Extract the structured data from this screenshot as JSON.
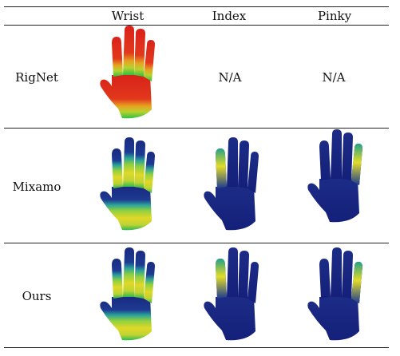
{
  "table": {
    "columns": [
      "",
      "Wrist",
      "Index",
      "Pinky"
    ],
    "rows": [
      {
        "label": "RigNet",
        "cells": [
          "wrist",
          "N/A",
          "N/A"
        ]
      },
      {
        "label": "Mixamo",
        "cells": [
          "wrist",
          "index",
          "pinky"
        ]
      },
      {
        "label": "Ours",
        "cells": [
          "wrist",
          "index",
          "pinky"
        ]
      }
    ]
  },
  "colors": {
    "navy": "#1a2a80",
    "red": "#dd2a1a",
    "yellow": "#e6e020",
    "green": "#36c23a",
    "teal": "#2aa39a",
    "lightgreen": "#9bd23a"
  }
}
